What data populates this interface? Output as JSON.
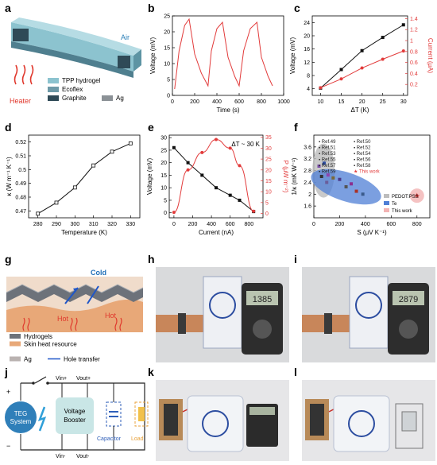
{
  "panels": {
    "a": "a",
    "b": "b",
    "c": "c",
    "d": "d",
    "e": "e",
    "f": "f",
    "g": "g",
    "h": "h",
    "i": "i",
    "j": "j",
    "k": "k",
    "l": "l"
  },
  "panel_a": {
    "air": "Air",
    "heater": "Heater",
    "legend": [
      "TPP hydrogel",
      "Ecoflex",
      "Graphite",
      "Ag"
    ],
    "legend_colors": [
      "#8cc3cf",
      "#6e9aa8",
      "#2f4a57",
      "#8b9196"
    ]
  },
  "chart_b": {
    "type": "line",
    "xlabel": "Time (s)",
    "ylabel": "Voltage (mV)",
    "xlim": [
      0,
      1000
    ],
    "ylim": [
      0,
      25
    ],
    "xticks": [
      0,
      200,
      400,
      600,
      800,
      1000
    ],
    "yticks": [
      0,
      5,
      10,
      15,
      20,
      25
    ],
    "x": [
      20,
      60,
      110,
      150,
      200,
      260,
      320,
      350,
      400,
      450,
      500,
      560,
      600,
      640,
      700,
      760,
      800,
      860,
      900
    ],
    "y": [
      2,
      14,
      22,
      24,
      13,
      7,
      3,
      14,
      21,
      23,
      12,
      6,
      3,
      14,
      21,
      23,
      12,
      6,
      3
    ],
    "color": "#e23b3b"
  },
  "chart_c": {
    "type": "line",
    "xlabel": "ΔT (K)",
    "ylabel": "Voltage (mV)",
    "y2label": "Current (μA)",
    "xlim": [
      8,
      31
    ],
    "ylim": [
      2,
      26
    ],
    "y2lim": [
      0,
      1.45
    ],
    "xticks": [
      10,
      15,
      20,
      25,
      30
    ],
    "yticks": [
      4,
      8,
      12,
      16,
      20,
      24
    ],
    "y2ticks": [
      0.2,
      0.4,
      0.6,
      0.8,
      1.0,
      1.2,
      1.4
    ],
    "series": [
      {
        "axis": "left",
        "color": "#111111",
        "x": [
          10,
          15,
          20,
          25,
          30
        ],
        "y": [
          4.2,
          9.8,
          15.5,
          19.5,
          23.3
        ]
      },
      {
        "axis": "right",
        "color": "#e23b3b",
        "x": [
          10,
          15,
          20,
          25,
          30
        ],
        "y": [
          0.14,
          0.3,
          0.5,
          0.66,
          0.81
        ]
      }
    ]
  },
  "chart_d": {
    "type": "line",
    "xlabel": "Temperature (K)",
    "ylabel": "κ (W m⁻¹ K⁻¹)",
    "xlim": [
      275,
      335
    ],
    "ylim": [
      0.465,
      0.525
    ],
    "xticks": [
      280,
      290,
      300,
      310,
      320,
      330
    ],
    "yticks": [
      0.47,
      0.48,
      0.49,
      0.5,
      0.51,
      0.52
    ],
    "x": [
      280,
      290,
      300,
      310,
      320,
      330
    ],
    "y": [
      0.468,
      0.476,
      0.487,
      0.503,
      0.513,
      0.519
    ]
  },
  "chart_e": {
    "type": "line",
    "xlabel": "Current (nA)",
    "ylabel": "Voltage (mV)",
    "y2label": "P (μW m⁻²)",
    "annotation": "ΔT ~ 30 K",
    "xlim": [
      -50,
      950
    ],
    "ylim": [
      -2,
      31
    ],
    "y2lim": [
      -2,
      36
    ],
    "xticks": [
      0,
      200,
      400,
      600,
      800
    ],
    "yticks": [
      0,
      5,
      10,
      15,
      20,
      25,
      30
    ],
    "y2ticks": [
      0,
      5,
      10,
      15,
      20,
      25,
      30,
      35
    ],
    "series": [
      {
        "axis": "left",
        "color": "#111111",
        "x": [
          0,
          150,
          300,
          450,
          600,
          700,
          850
        ],
        "y": [
          26,
          20,
          15,
          10,
          7,
          5,
          0.5
        ]
      },
      {
        "axis": "right",
        "color": "#e23b3b",
        "x": [
          0,
          150,
          300,
          450,
          600,
          700,
          850
        ],
        "y": [
          0.5,
          20,
          28,
          34,
          30,
          22,
          1
        ]
      }
    ]
  },
  "chart_f": {
    "type": "scatter",
    "xlabel": "S (μV K⁻¹)",
    "ylabel": "1/κ (mK W⁻¹)",
    "xlim": [
      0,
      900
    ],
    "ylim": [
      1.2,
      4.0
    ],
    "xticks": [
      0,
      200,
      400,
      600,
      800
    ],
    "yticks": [
      1.6,
      2.0,
      2.4,
      2.8,
      3.2,
      3.6
    ],
    "refs": [
      "Ref.49",
      "Ref.50",
      "Ref.51",
      "Ref.52",
      "Ref.53",
      "Ref.54",
      "Ref.55",
      "Ref.56",
      "Ref.57",
      "Ref.58",
      "Ref.59",
      "This work"
    ],
    "regions": [
      "PEDOT:PSS",
      "Te",
      "This work"
    ],
    "points": [
      {
        "x": 40,
        "y": 2.95
      },
      {
        "x": 60,
        "y": 2.6
      },
      {
        "x": 80,
        "y": 3.05
      },
      {
        "x": 100,
        "y": 2.4
      },
      {
        "x": 110,
        "y": 2.65
      },
      {
        "x": 150,
        "y": 2.55
      },
      {
        "x": 200,
        "y": 2.5
      },
      {
        "x": 250,
        "y": 2.25
      },
      {
        "x": 290,
        "y": 2.35
      },
      {
        "x": 330,
        "y": 2.1
      },
      {
        "x": 380,
        "y": 2.0
      },
      {
        "x": 800,
        "y": 1.95
      }
    ]
  },
  "panel_g": {
    "cold": "Cold",
    "hot1": "Hot",
    "hot2": "Hot",
    "legend": [
      "Hydrogels",
      "Skin heat resource",
      "Ag",
      "Hole transfer"
    ]
  },
  "panel_h": {
    "reading": "1385"
  },
  "panel_i": {
    "reading": "2879"
  },
  "panel_j": {
    "teg": "TEG",
    "system": "System",
    "vin_plus": "Vin+",
    "vout_plus": "Vout+",
    "vin_minus": "Vin-",
    "vout_minus": "Vout-",
    "booster1": "Voltage",
    "booster2": "Booster",
    "capacitor": "Capacitor",
    "load": "Load",
    "plus": "+",
    "minus": "−"
  }
}
